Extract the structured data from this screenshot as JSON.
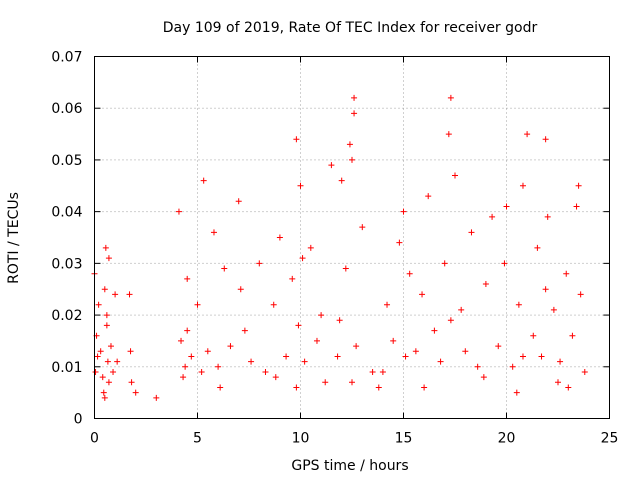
{
  "chart_data": {
    "type": "scatter",
    "title": "Day 109 of 2019, Rate Of TEC Index for receiver godr",
    "xlabel": "GPS time / hours",
    "ylabel": "ROTI / TECUs",
    "xlim": [
      0,
      25
    ],
    "ylim": [
      0,
      0.07
    ],
    "x_ticks": [
      "0",
      "5",
      "10",
      "15",
      "20",
      "25"
    ],
    "y_ticks": [
      "0",
      "0.01",
      "0.02",
      "0.03",
      "0.04",
      "0.05",
      "0.06",
      "0.07"
    ],
    "grid": true,
    "marker": "plus",
    "color": "#ff0000",
    "series": [
      {
        "x": [
          0.0,
          0.05,
          0.1,
          0.15,
          0.2,
          0.3,
          0.4,
          0.5,
          0.55,
          0.6,
          0.65,
          0.7,
          0.8,
          0.9,
          1.0,
          1.1,
          0.45,
          0.5,
          0.6,
          0.7,
          1.7,
          1.75,
          1.8,
          4.1,
          4.2,
          4.3,
          4.5,
          4.7,
          5.0,
          5.3,
          5.5,
          5.8,
          6.0,
          6.3,
          6.6,
          7.0,
          7.3,
          7.6,
          8.0,
          8.3,
          8.7,
          9.0,
          9.3,
          9.6,
          9.8,
          9.9,
          10.0,
          10.2,
          10.5,
          10.8,
          11.0,
          11.5,
          11.8,
          12.0,
          12.2,
          12.4,
          12.5,
          12.6,
          12.6,
          12.7,
          13.0,
          13.5,
          13.8,
          14.2,
          14.5,
          14.8,
          15.0,
          15.1,
          15.3,
          15.6,
          15.9,
          16.2,
          16.5,
          16.8,
          17.0,
          17.2,
          17.3,
          17.5,
          17.8,
          18.0,
          18.3,
          18.6,
          19.0,
          19.3,
          19.6,
          19.9,
          20.0,
          20.3,
          20.6,
          20.8,
          21.0,
          21.3,
          21.5,
          21.7,
          21.9,
          22.0,
          22.3,
          22.6,
          22.9,
          23.2,
          23.4,
          23.6,
          23.8,
          4.5,
          5.2,
          7.1,
          9.8,
          10.1,
          11.9,
          12.5,
          17.3,
          20.8,
          21.9,
          23.5,
          2.0,
          4.4,
          6.1,
          8.8,
          11.2,
          14.0,
          16.0,
          18.9,
          20.5,
          22.5,
          23.0,
          3.0
        ],
        "y": [
          0.028,
          0.009,
          0.016,
          0.012,
          0.022,
          0.013,
          0.008,
          0.025,
          0.033,
          0.018,
          0.011,
          0.031,
          0.014,
          0.009,
          0.024,
          0.011,
          0.005,
          0.004,
          0.02,
          0.007,
          0.024,
          0.013,
          0.007,
          0.04,
          0.015,
          0.008,
          0.027,
          0.012,
          0.022,
          0.046,
          0.013,
          0.036,
          0.01,
          0.029,
          0.014,
          0.042,
          0.017,
          0.011,
          0.03,
          0.009,
          0.022,
          0.035,
          0.012,
          0.027,
          0.054,
          0.018,
          0.045,
          0.011,
          0.033,
          0.015,
          0.02,
          0.049,
          0.012,
          0.046,
          0.029,
          0.053,
          0.05,
          0.062,
          0.059,
          0.014,
          0.037,
          0.009,
          0.006,
          0.022,
          0.015,
          0.034,
          0.04,
          0.012,
          0.028,
          0.013,
          0.024,
          0.043,
          0.017,
          0.011,
          0.03,
          0.055,
          0.062,
          0.047,
          0.021,
          0.013,
          0.036,
          0.01,
          0.026,
          0.039,
          0.014,
          0.03,
          0.041,
          0.01,
          0.022,
          0.045,
          0.055,
          0.016,
          0.033,
          0.012,
          0.054,
          0.039,
          0.021,
          0.011,
          0.028,
          0.016,
          0.041,
          0.024,
          0.009,
          0.017,
          0.009,
          0.025,
          0.006,
          0.031,
          0.019,
          0.007,
          0.019,
          0.012,
          0.025,
          0.045,
          0.005,
          0.01,
          0.006,
          0.008,
          0.007,
          0.009,
          0.006,
          0.008,
          0.005,
          0.007,
          0.006,
          0.004
        ]
      }
    ]
  }
}
